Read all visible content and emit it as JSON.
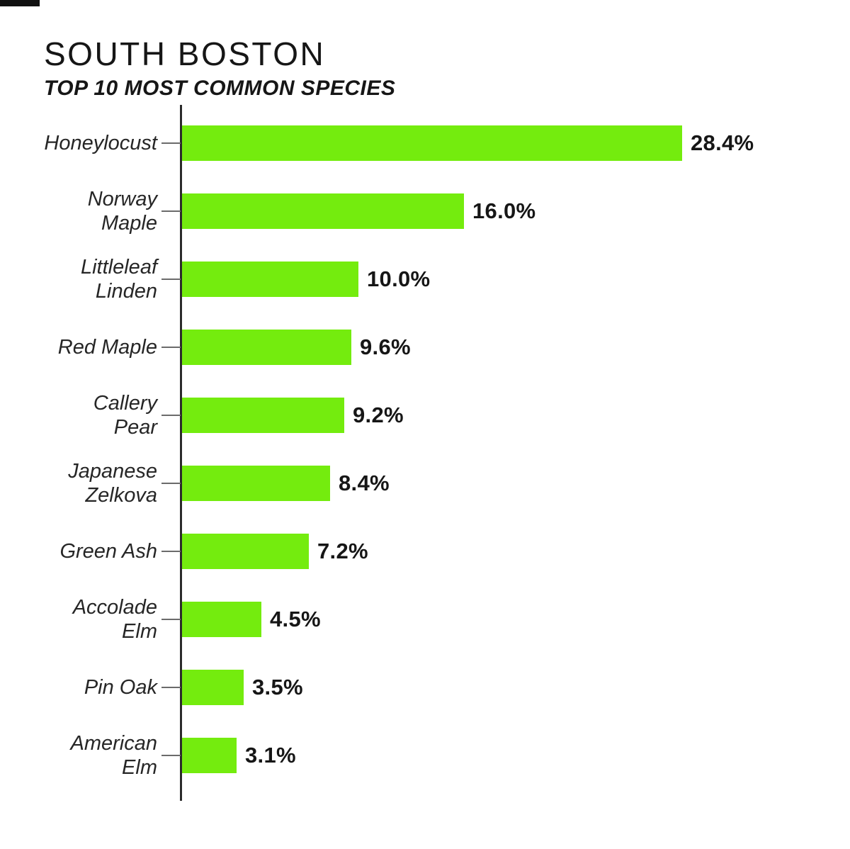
{
  "page": {
    "background": "#ffffff"
  },
  "chart_data": {
    "type": "bar",
    "orientation": "horizontal",
    "title": "SOUTH BOSTON",
    "subtitle": "TOP 10 MOST COMMON SPECIES",
    "categories": [
      "Honeylocust",
      "Norway\nMaple",
      "Littleleaf\nLinden",
      "Red Maple",
      "Callery\nPear",
      "Japanese\nZelkova",
      "Green Ash",
      "Accolade\nElm",
      "Pin Oak",
      "American\nElm"
    ],
    "values": [
      28.4,
      16.0,
      10.0,
      9.6,
      9.2,
      8.4,
      7.2,
      4.5,
      3.5,
      3.1
    ],
    "value_labels": [
      "28.4%",
      "16.0%",
      "10.0%",
      "9.6%",
      "9.2%",
      "8.4%",
      "7.2%",
      "4.5%",
      "3.5%",
      "3.1%"
    ],
    "xlim": [
      0,
      28.4
    ],
    "grid": false,
    "legend": false,
    "bar_color": "#74ec0e",
    "axis_color": "#2b2b2b",
    "tick_color": "#6b6b6b",
    "category_text_color": "#262626",
    "number_text_color": "#161616"
  }
}
